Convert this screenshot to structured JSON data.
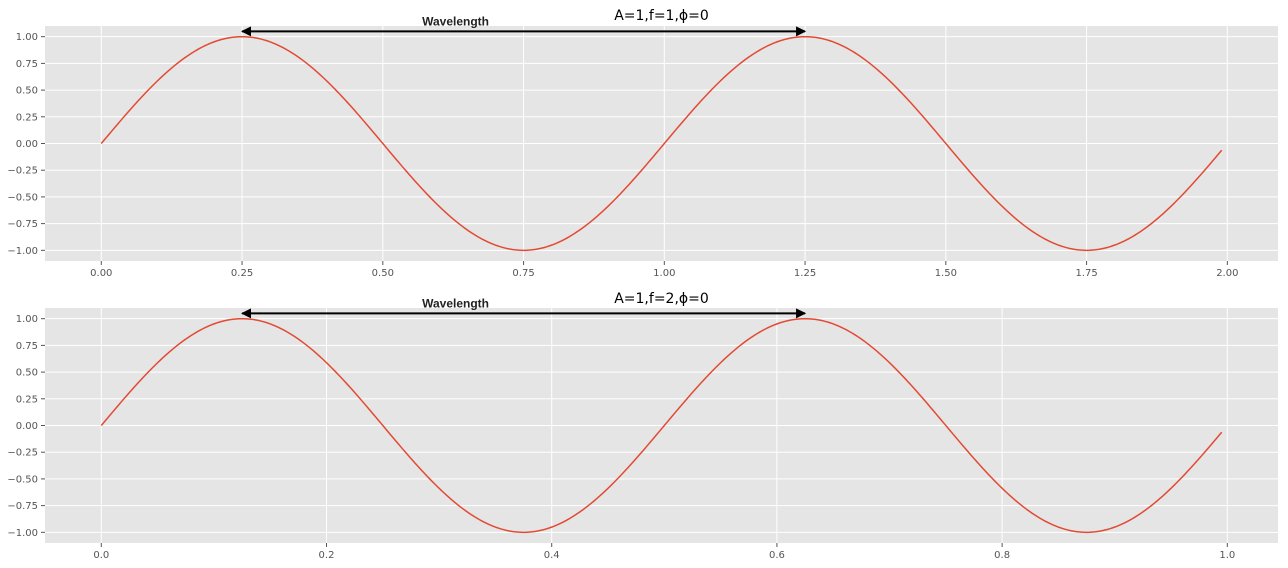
{
  "chart_data": [
    {
      "type": "line",
      "title": "A=1,f=1,ϕ=0",
      "xlabel": "",
      "ylabel": "",
      "function": {
        "amplitude": 1,
        "frequency": 1,
        "phase": 0
      },
      "x_range": [
        0,
        1.99
      ],
      "xlim": [
        -0.1,
        2.09
      ],
      "ylim": [
        -1.1,
        1.1
      ],
      "x_ticks": [
        0.0,
        0.25,
        0.5,
        0.75,
        1.0,
        1.25,
        1.5,
        1.75,
        2.0
      ],
      "x_tick_labels": [
        "0.00",
        "0.25",
        "0.50",
        "0.75",
        "1.00",
        "1.25",
        "1.50",
        "1.75",
        "2.00"
      ],
      "y_ticks": [
        1.0,
        0.75,
        0.5,
        0.25,
        0.0,
        -0.25,
        -0.5,
        -0.75,
        -1.0
      ],
      "y_tick_labels": [
        "1.00",
        "0.75",
        "0.50",
        "0.25",
        "0.00",
        "−0.25",
        "−0.50",
        "−0.75",
        "−1.00"
      ],
      "grid": true,
      "series": [
        {
          "color": "#e24a33",
          "x": [
            0,
            0.05,
            0.1,
            0.15,
            0.2,
            0.25,
            0.3,
            0.35,
            0.4,
            0.45,
            0.5,
            0.55,
            0.6,
            0.65,
            0.7,
            0.75,
            0.8,
            0.85,
            0.9,
            0.95,
            1.0,
            1.05,
            1.1,
            1.15,
            1.2,
            1.25,
            1.3,
            1.35,
            1.4,
            1.45,
            1.5,
            1.55,
            1.6,
            1.65,
            1.7,
            1.75,
            1.8,
            1.85,
            1.9,
            1.95,
            1.99
          ],
          "y": [
            0.0,
            0.309,
            0.588,
            0.809,
            0.951,
            1.0,
            0.951,
            0.809,
            0.588,
            0.309,
            0.0,
            -0.309,
            -0.588,
            -0.809,
            -0.951,
            -1.0,
            -0.951,
            -0.809,
            -0.588,
            -0.309,
            0.0,
            0.309,
            0.588,
            0.809,
            0.951,
            1.0,
            0.951,
            0.809,
            0.588,
            0.309,
            0.0,
            -0.309,
            -0.588,
            -0.809,
            -0.951,
            -1.0,
            -0.951,
            -0.809,
            -0.588,
            -0.309,
            -0.063
          ]
        }
      ],
      "annotation": {
        "text": "Wavelength",
        "x_start": 0.25,
        "x_end": 1.25,
        "y": 1.05
      }
    },
    {
      "type": "line",
      "title": "A=1,f=2,ϕ=0",
      "xlabel": "",
      "ylabel": "",
      "function": {
        "amplitude": 1,
        "frequency": 2,
        "phase": 0
      },
      "x_range": [
        0,
        0.995
      ],
      "xlim": [
        -0.05,
        1.045
      ],
      "ylim": [
        -1.1,
        1.1
      ],
      "x_ticks": [
        0.0,
        0.2,
        0.4,
        0.6,
        0.8,
        1.0
      ],
      "x_tick_labels": [
        "0.0",
        "0.2",
        "0.4",
        "0.6",
        "0.8",
        "1.0"
      ],
      "y_ticks": [
        1.0,
        0.75,
        0.5,
        0.25,
        0.0,
        -0.25,
        -0.5,
        -0.75,
        -1.0
      ],
      "y_tick_labels": [
        "1.00",
        "0.75",
        "0.50",
        "0.25",
        "0.00",
        "−0.25",
        "−0.50",
        "−0.75",
        "−1.00"
      ],
      "grid": true,
      "series": [
        {
          "color": "#e24a33",
          "x": [
            0,
            0.025,
            0.05,
            0.075,
            0.1,
            0.125,
            0.15,
            0.175,
            0.2,
            0.225,
            0.25,
            0.275,
            0.3,
            0.325,
            0.35,
            0.375,
            0.4,
            0.425,
            0.45,
            0.475,
            0.5,
            0.525,
            0.55,
            0.575,
            0.6,
            0.625,
            0.65,
            0.675,
            0.7,
            0.725,
            0.75,
            0.775,
            0.8,
            0.825,
            0.85,
            0.875,
            0.9,
            0.925,
            0.95,
            0.975,
            0.995
          ],
          "y": [
            0.0,
            0.309,
            0.588,
            0.809,
            0.951,
            1.0,
            0.951,
            0.809,
            0.588,
            0.309,
            0.0,
            -0.309,
            -0.588,
            -0.809,
            -0.951,
            -1.0,
            -0.951,
            -0.809,
            -0.588,
            -0.309,
            0.0,
            0.309,
            0.588,
            0.809,
            0.951,
            1.0,
            0.951,
            0.809,
            0.588,
            0.309,
            0.0,
            -0.309,
            -0.588,
            -0.809,
            -0.951,
            -1.0,
            -0.951,
            -0.809,
            -0.588,
            -0.309,
            -0.063
          ]
        }
      ],
      "annotation": {
        "text": "Wavelength",
        "x_start": 0.125,
        "x_end": 0.625,
        "y": 1.05
      }
    }
  ]
}
